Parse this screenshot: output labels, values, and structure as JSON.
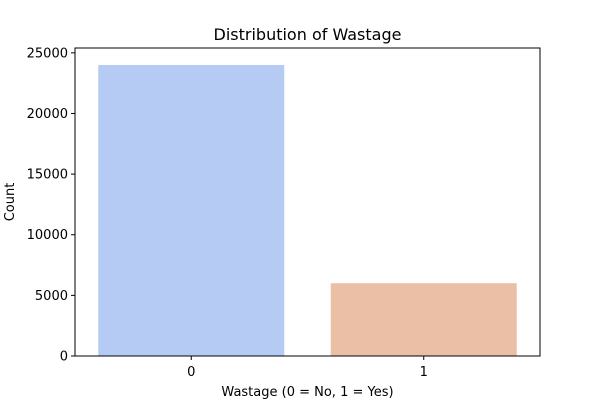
{
  "chart_data": {
    "type": "bar",
    "title": "Distribution of Wastage",
    "xlabel": "Wastage (0 = No, 1 = Yes)",
    "ylabel": "Count",
    "categories": [
      "0",
      "1"
    ],
    "values": [
      24000,
      6000
    ],
    "bar_colors": [
      "#b5cbf3",
      "#ebbea6"
    ],
    "ylim": [
      0,
      25400
    ],
    "yticks": [
      0,
      5000,
      10000,
      15000,
      20000,
      25000
    ],
    "grid": false,
    "legend": "none"
  }
}
